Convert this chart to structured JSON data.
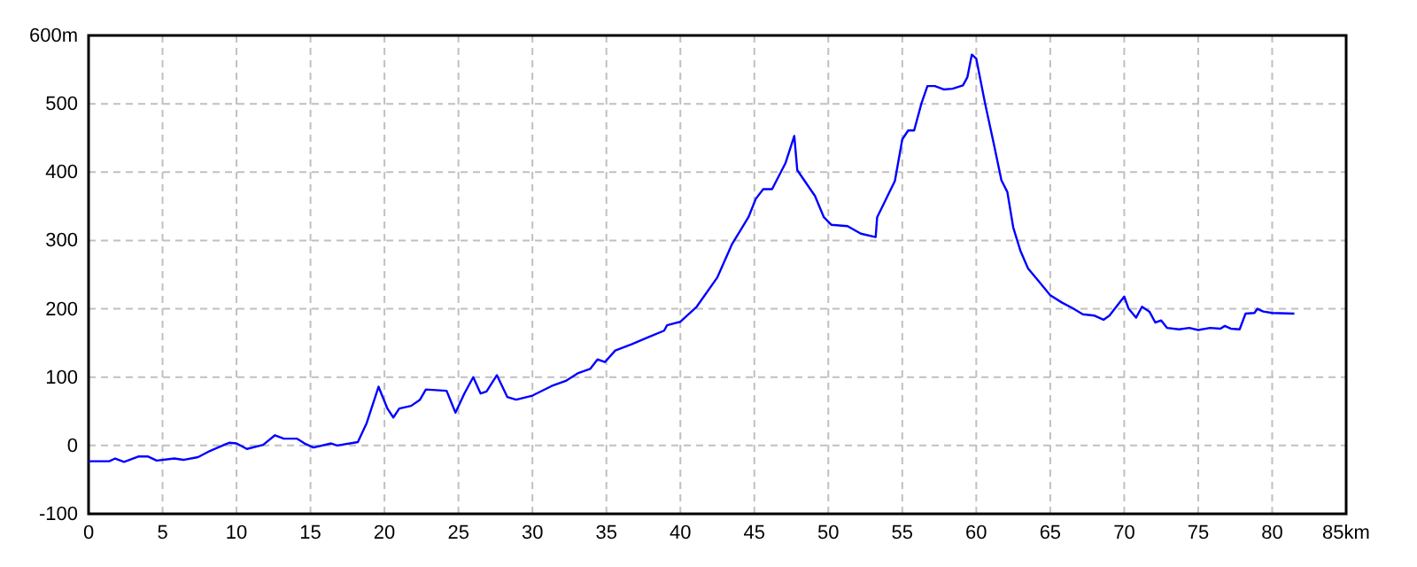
{
  "chart_data": {
    "type": "line",
    "x": [
      0,
      1.4,
      1.8,
      2.4,
      3.4,
      4,
      4.6,
      5.8,
      6.4,
      7.4,
      8.2,
      9.5,
      10,
      10.7,
      11.8,
      12.6,
      13.2,
      14.1,
      14.6,
      15.2,
      16.4,
      16.8,
      18.2,
      18.8,
      19.6,
      20.2,
      20.6,
      21,
      21.8,
      22.4,
      22.8,
      24.2,
      24.8,
      25.4,
      26,
      26.5,
      26.9,
      27.6,
      28.3,
      28.9,
      30,
      31.3,
      32.3,
      33.1,
      33.9,
      34.4,
      34.9,
      35.6,
      36.7,
      37.9,
      38.9,
      39.1,
      40,
      41.1,
      42.5,
      43.5,
      44.6,
      45.1,
      45.6,
      46.2,
      47.1,
      47.7,
      47.9,
      49.1,
      49.7,
      50.2,
      51.3,
      52.2,
      53.2,
      53.3,
      54.5,
      55,
      55.4,
      55.8,
      56.3,
      56.7,
      57.2,
      57.8,
      58.4,
      59.1,
      59.4,
      59.7,
      60,
      60.6,
      61.2,
      61.7,
      62.1,
      62.5,
      63,
      63.5,
      64.2,
      65,
      65.8,
      66.5,
      67.2,
      68,
      68.6,
      69,
      70,
      70.3,
      70.8,
      71.2,
      71.7,
      72.1,
      72.5,
      72.9,
      73.7,
      74.4,
      75,
      75.8,
      76.5,
      76.8,
      77.2,
      77.8,
      78.2,
      78.8,
      79,
      79.4,
      80,
      81.5
    ],
    "series": [
      {
        "color": "#0000ff",
        "values": [
          -23,
          -23,
          -19,
          -24,
          -16,
          -16,
          -22,
          -19,
          -21,
          -17,
          -8,
          4,
          3,
          -5,
          1,
          15,
          10,
          10,
          3,
          -3,
          3,
          0,
          5,
          33,
          86,
          54,
          41,
          54,
          58,
          67,
          82,
          80,
          48,
          76,
          100,
          76,
          79,
          103,
          71,
          67,
          73,
          87,
          95,
          106,
          112,
          126,
          122,
          139,
          148,
          159,
          168,
          176,
          181,
          203,
          246,
          295,
          334,
          361,
          375,
          375,
          413,
          453,
          403,
          365,
          334,
          323,
          321,
          310,
          305,
          334,
          387,
          448,
          461,
          461,
          501,
          526,
          526,
          521,
          522,
          527,
          539,
          572,
          566,
          500,
          440,
          388,
          371,
          319,
          284,
          259,
          241,
          220,
          209,
          201,
          192,
          190,
          184,
          190,
          218,
          200,
          187,
          203,
          196,
          180,
          183,
          172,
          170,
          172,
          169,
          172,
          171,
          175,
          171,
          170,
          193,
          194,
          200,
          196,
          194,
          193
        ]
      }
    ],
    "xlim": [
      0,
      85
    ],
    "xticks": [
      0,
      5,
      10,
      15,
      20,
      25,
      30,
      35,
      40,
      45,
      50,
      55,
      60,
      65,
      70,
      75,
      80,
      {
        "value": 85,
        "label": "85km"
      }
    ],
    "ylim": [
      -100,
      600
    ],
    "yticks": [
      -100,
      0,
      100,
      200,
      300,
      400,
      500,
      {
        "value": 600,
        "label": "600m"
      }
    ],
    "grid": true
  }
}
